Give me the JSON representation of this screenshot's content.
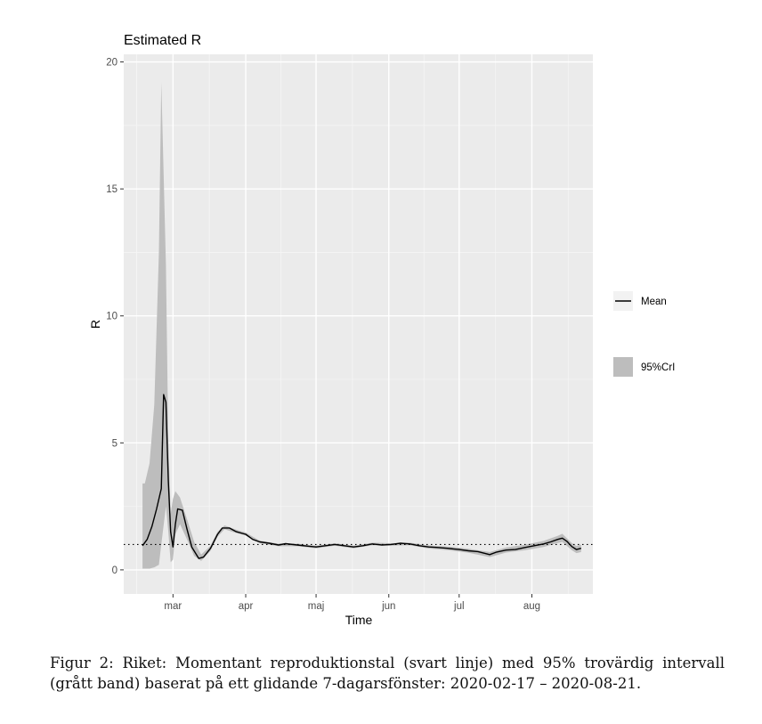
{
  "chart_data": {
    "type": "line",
    "title": "Estimated R",
    "xlabel": "Time",
    "ylabel": "R",
    "x_range": [
      "2020-02-09",
      "2020-08-27"
    ],
    "ylim": [
      -0.95,
      20.3
    ],
    "y_ticks": [
      0,
      5,
      10,
      15,
      20
    ],
    "x_ticks": [
      {
        "date": "2020-03-01",
        "label": "mar"
      },
      {
        "date": "2020-04-01",
        "label": "apr"
      },
      {
        "date": "2020-05-01",
        "label": "maj"
      },
      {
        "date": "2020-06-01",
        "label": "jun"
      },
      {
        "date": "2020-07-01",
        "label": "jul"
      },
      {
        "date": "2020-08-01",
        "label": "aug"
      }
    ],
    "reference_line": {
      "y": 1,
      "style": "dotted"
    },
    "grid": true,
    "legend_position": "right",
    "legend": [
      {
        "label": "Mean",
        "kind": "line",
        "color": "#000000"
      },
      {
        "label": "95%CrI",
        "kind": "band",
        "color": "#bdbdbd"
      }
    ],
    "series": [
      {
        "name": "Mean",
        "points": [
          [
            "2020-02-17",
            0.95
          ],
          [
            "2020-02-19",
            1.2
          ],
          [
            "2020-02-21",
            1.7
          ],
          [
            "2020-02-23",
            2.4
          ],
          [
            "2020-02-25",
            3.2
          ],
          [
            "2020-02-26",
            6.9
          ],
          [
            "2020-02-27",
            6.6
          ],
          [
            "2020-02-28",
            3.5
          ],
          [
            "2020-02-29",
            1.5
          ],
          [
            "2020-03-01",
            0.9
          ],
          [
            "2020-03-02",
            1.8
          ],
          [
            "2020-03-03",
            2.4
          ],
          [
            "2020-03-05",
            2.35
          ],
          [
            "2020-03-07",
            1.6
          ],
          [
            "2020-03-09",
            0.9
          ],
          [
            "2020-03-12",
            0.45
          ],
          [
            "2020-03-14",
            0.5
          ],
          [
            "2020-03-17",
            0.85
          ],
          [
            "2020-03-20",
            1.4
          ],
          [
            "2020-03-22",
            1.65
          ],
          [
            "2020-03-25",
            1.65
          ],
          [
            "2020-03-28",
            1.5
          ],
          [
            "2020-04-01",
            1.4
          ],
          [
            "2020-04-04",
            1.2
          ],
          [
            "2020-04-07",
            1.1
          ],
          [
            "2020-04-11",
            1.05
          ],
          [
            "2020-04-15",
            0.98
          ],
          [
            "2020-04-18",
            1.03
          ],
          [
            "2020-04-23",
            0.98
          ],
          [
            "2020-04-28",
            0.93
          ],
          [
            "2020-05-01",
            0.9
          ],
          [
            "2020-05-05",
            0.95
          ],
          [
            "2020-05-09",
            1.0
          ],
          [
            "2020-05-13",
            0.95
          ],
          [
            "2020-05-17",
            0.9
          ],
          [
            "2020-05-21",
            0.95
          ],
          [
            "2020-05-25",
            1.02
          ],
          [
            "2020-05-29",
            0.98
          ],
          [
            "2020-06-02",
            1.0
          ],
          [
            "2020-06-06",
            1.05
          ],
          [
            "2020-06-10",
            1.02
          ],
          [
            "2020-06-14",
            0.95
          ],
          [
            "2020-06-18",
            0.9
          ],
          [
            "2020-06-22",
            0.88
          ],
          [
            "2020-06-26",
            0.85
          ],
          [
            "2020-07-01",
            0.8
          ],
          [
            "2020-07-05",
            0.75
          ],
          [
            "2020-07-09",
            0.72
          ],
          [
            "2020-07-12",
            0.65
          ],
          [
            "2020-07-14",
            0.6
          ],
          [
            "2020-07-17",
            0.7
          ],
          [
            "2020-07-21",
            0.78
          ],
          [
            "2020-07-25",
            0.8
          ],
          [
            "2020-07-29",
            0.88
          ],
          [
            "2020-08-02",
            0.95
          ],
          [
            "2020-08-06",
            1.02
          ],
          [
            "2020-08-09",
            1.1
          ],
          [
            "2020-08-12",
            1.2
          ],
          [
            "2020-08-14",
            1.25
          ],
          [
            "2020-08-16",
            1.12
          ],
          [
            "2020-08-18",
            0.92
          ],
          [
            "2020-08-20",
            0.8
          ],
          [
            "2020-08-22",
            0.85
          ]
        ]
      },
      {
        "name": "95%CrI",
        "band": [
          [
            "2020-02-17",
            0.05,
            3.4
          ],
          [
            "2020-02-18",
            0.05,
            3.4
          ],
          [
            "2020-02-20",
            0.05,
            4.2
          ],
          [
            "2020-02-22",
            0.1,
            6.5
          ],
          [
            "2020-02-24",
            0.2,
            12.5
          ],
          [
            "2020-02-25",
            1.0,
            19.2
          ],
          [
            "2020-02-27",
            2.5,
            12.0
          ],
          [
            "2020-02-28",
            1.5,
            5.0
          ],
          [
            "2020-02-29",
            0.3,
            2.2
          ],
          [
            "2020-03-01",
            0.4,
            2.8
          ],
          [
            "2020-03-02",
            1.4,
            3.1
          ],
          [
            "2020-03-04",
            1.8,
            2.85
          ],
          [
            "2020-03-07",
            1.2,
            2.0
          ],
          [
            "2020-03-10",
            0.55,
            1.1
          ],
          [
            "2020-03-13",
            0.35,
            0.6
          ],
          [
            "2020-03-17",
            0.75,
            0.95
          ],
          [
            "2020-03-20",
            1.3,
            1.5
          ],
          [
            "2020-03-23",
            1.6,
            1.75
          ],
          [
            "2020-03-28",
            1.45,
            1.58
          ],
          [
            "2020-04-01",
            1.35,
            1.47
          ],
          [
            "2020-04-07",
            1.05,
            1.15
          ],
          [
            "2020-04-15",
            0.93,
            1.03
          ],
          [
            "2020-04-23",
            0.93,
            1.03
          ],
          [
            "2020-05-01",
            0.85,
            0.95
          ],
          [
            "2020-05-09",
            0.95,
            1.05
          ],
          [
            "2020-05-17",
            0.85,
            0.95
          ],
          [
            "2020-05-25",
            0.97,
            1.07
          ],
          [
            "2020-06-02",
            0.95,
            1.05
          ],
          [
            "2020-06-10",
            0.97,
            1.07
          ],
          [
            "2020-06-18",
            0.84,
            0.96
          ],
          [
            "2020-06-26",
            0.78,
            0.92
          ],
          [
            "2020-07-05",
            0.67,
            0.83
          ],
          [
            "2020-07-14",
            0.5,
            0.7
          ],
          [
            "2020-07-21",
            0.68,
            0.88
          ],
          [
            "2020-07-29",
            0.77,
            0.99
          ],
          [
            "2020-08-06",
            0.9,
            1.14
          ],
          [
            "2020-08-12",
            1.06,
            1.34
          ],
          [
            "2020-08-14",
            1.1,
            1.42
          ],
          [
            "2020-08-18",
            0.78,
            1.06
          ],
          [
            "2020-08-20",
            0.66,
            0.94
          ],
          [
            "2020-08-22",
            0.7,
            1.0
          ]
        ]
      }
    ]
  },
  "caption": "Figur 2: Riket: Momentant reproduktionstal (svart linje) med 95% trovärdig intervall (grått band) baserat på ett glidande 7-dagarsfönster: 2020-02-17 – 2020-08-21."
}
